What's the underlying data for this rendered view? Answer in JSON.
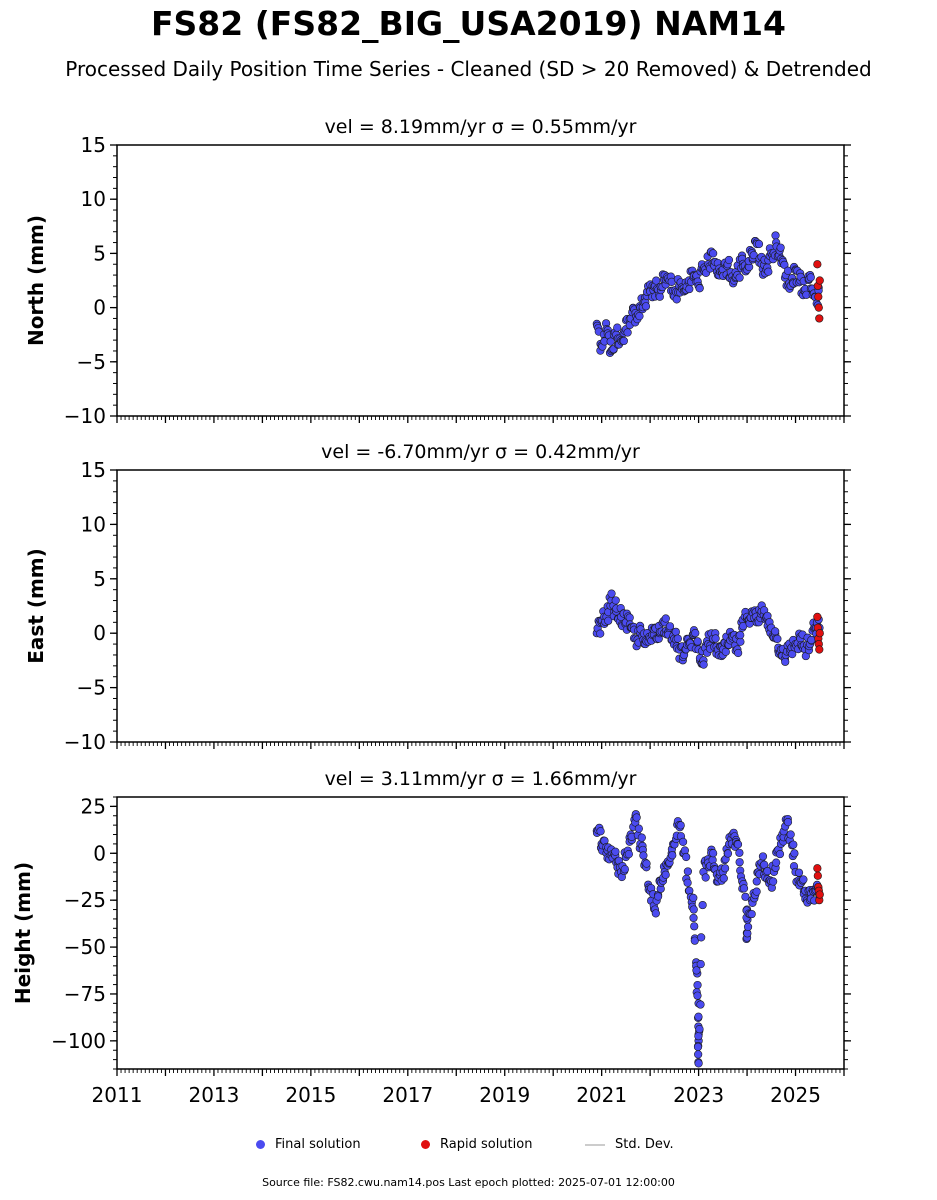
{
  "header": {
    "title": "FS82 (FS82_BIG_USA2019) NAM14",
    "subtitle": "Processed Daily Position Time Series - Cleaned (SD > 20 Removed) & Detrended"
  },
  "legend": {
    "final_label": "Final solution",
    "rapid_label": "Rapid solution",
    "std_label": "Std. Dev."
  },
  "footer": {
    "text": "Source file: FS82.cwu.nam14.pos  Last epoch plotted: 2025-07-01 12:00:00"
  },
  "colors": {
    "final": "#4b4bf0",
    "rapid": "#e01010",
    "std": "#9a9a9a",
    "marker_edge": "#1a1a1a"
  },
  "chart_data": [
    {
      "type": "scatter",
      "panel_title": "vel = 8.19mm/yr   σ = 0.55mm/yr",
      "ylabel": "North (mm)",
      "xlim": [
        2011.0,
        2026.0
      ],
      "ylim": [
        -10,
        15
      ],
      "yticks": [
        -10,
        -5,
        0,
        5,
        10,
        15
      ],
      "ytick_labels": [
        "−10",
        "−5",
        "0",
        "5",
        "10",
        "15"
      ],
      "xticks": [
        2011,
        2013,
        2015,
        2017,
        2019,
        2021,
        2023,
        2025
      ],
      "show_xtick_labels": false,
      "final_series": {
        "name": "Final solution",
        "x": [
          2020.9,
          2021.0,
          2021.1,
          2021.2,
          2021.3,
          2021.4,
          2021.5,
          2021.6,
          2021.7,
          2021.8,
          2021.9,
          2022.0,
          2022.1,
          2022.2,
          2022.3,
          2022.4,
          2022.5,
          2022.6,
          2022.7,
          2022.8,
          2022.9,
          2023.0,
          2023.1,
          2023.2,
          2023.3,
          2023.4,
          2023.5,
          2023.6,
          2023.7,
          2023.8,
          2023.9,
          2024.0,
          2024.1,
          2024.2,
          2024.3,
          2024.4,
          2024.5,
          2024.6,
          2024.7,
          2024.8,
          2024.9,
          2025.0,
          2025.1,
          2025.2,
          2025.3,
          2025.4
        ],
        "y": [
          -1.5,
          -3.5,
          -2.0,
          -4.0,
          -2.5,
          -3.0,
          -2.0,
          -1.0,
          -0.5,
          0.0,
          0.5,
          1.5,
          2.0,
          1.0,
          3.0,
          2.5,
          1.0,
          2.0,
          1.5,
          2.5,
          3.0,
          2.0,
          3.5,
          4.0,
          5.0,
          3.0,
          3.5,
          4.0,
          2.5,
          3.0,
          4.5,
          3.5,
          5.0,
          6.0,
          4.0,
          3.5,
          5.0,
          6.0,
          4.5,
          3.0,
          2.0,
          3.5,
          2.5,
          1.5,
          3.0,
          1.0
        ]
      },
      "rapid_series": {
        "name": "Rapid solution",
        "x": [
          2025.45,
          2025.46,
          2025.47,
          2025.48,
          2025.49,
          2025.5
        ],
        "y": [
          4.0,
          2.0,
          1.0,
          0.0,
          -1.0,
          2.5
        ]
      }
    },
    {
      "type": "scatter",
      "panel_title": "vel = -6.70mm/yr   σ = 0.42mm/yr",
      "ylabel": "East (mm)",
      "xlim": [
        2011.0,
        2026.0
      ],
      "ylim": [
        -10,
        15
      ],
      "yticks": [
        -10,
        -5,
        0,
        5,
        10,
        15
      ],
      "ytick_labels": [
        "−10",
        "−5",
        "0",
        "5",
        "10",
        "15"
      ],
      "xticks": [
        2011,
        2013,
        2015,
        2017,
        2019,
        2021,
        2023,
        2025
      ],
      "show_xtick_labels": false,
      "final_series": {
        "name": "Final solution",
        "x": [
          2020.9,
          2021.0,
          2021.1,
          2021.2,
          2021.3,
          2021.4,
          2021.5,
          2021.6,
          2021.7,
          2021.8,
          2021.9,
          2022.0,
          2022.1,
          2022.2,
          2022.3,
          2022.4,
          2022.5,
          2022.6,
          2022.7,
          2022.8,
          2022.9,
          2023.0,
          2023.1,
          2023.2,
          2023.3,
          2023.4,
          2023.5,
          2023.6,
          2023.7,
          2023.8,
          2023.9,
          2024.0,
          2024.1,
          2024.2,
          2024.3,
          2024.4,
          2024.5,
          2024.6,
          2024.7,
          2024.8,
          2024.9,
          2025.0,
          2025.1,
          2025.2,
          2025.3,
          2025.4
        ],
        "y": [
          0.0,
          1.0,
          1.5,
          3.0,
          2.0,
          1.5,
          1.0,
          0.5,
          -0.5,
          0.0,
          -1.0,
          -0.5,
          0.5,
          0.0,
          1.0,
          0.5,
          -0.5,
          -1.5,
          -2.0,
          -1.0,
          0.0,
          -1.5,
          -2.5,
          -1.0,
          -0.5,
          -1.5,
          -2.0,
          -1.0,
          -0.5,
          -1.5,
          0.5,
          1.5,
          2.0,
          1.0,
          2.0,
          1.5,
          0.5,
          -0.5,
          -1.5,
          -2.0,
          -1.5,
          -1.0,
          -0.5,
          -1.5,
          -1.0,
          0.5
        ]
      },
      "rapid_series": {
        "name": "Rapid solution",
        "x": [
          2025.45,
          2025.46,
          2025.47,
          2025.48,
          2025.49,
          2025.5
        ],
        "y": [
          1.5,
          0.5,
          -0.5,
          -1.0,
          -1.5,
          0.0
        ]
      }
    },
    {
      "type": "scatter",
      "panel_title": "vel = 3.11mm/yr   σ = 1.66mm/yr",
      "ylabel": "Height (mm)",
      "xlim": [
        2011.0,
        2026.0
      ],
      "ylim": [
        -115,
        30
      ],
      "yticks": [
        -100,
        -75,
        -50,
        -25,
        0,
        25
      ],
      "ytick_labels": [
        "−100",
        "−75",
        "−50",
        "−25",
        "0",
        "25"
      ],
      "xticks": [
        2011,
        2013,
        2015,
        2017,
        2019,
        2021,
        2023,
        2025
      ],
      "xtick_labels": [
        "2011",
        "2013",
        "2015",
        "2017",
        "2019",
        "2021",
        "2023",
        "2025"
      ],
      "show_xtick_labels": true,
      "final_series": {
        "name": "Final solution",
        "x": [
          2020.9,
          2021.0,
          2021.1,
          2021.2,
          2021.3,
          2021.4,
          2021.5,
          2021.6,
          2021.7,
          2021.8,
          2021.9,
          2022.0,
          2022.1,
          2022.2,
          2022.3,
          2022.4,
          2022.5,
          2022.6,
          2022.7,
          2022.8,
          2022.9,
          2022.95,
          2023.0,
          2023.0,
          2023.0,
          2023.1,
          2023.2,
          2023.3,
          2023.4,
          2023.5,
          2023.6,
          2023.7,
          2023.8,
          2023.9,
          2024.0,
          2024.0,
          2024.1,
          2024.2,
          2024.3,
          2024.4,
          2024.5,
          2024.6,
          2024.7,
          2024.8,
          2024.9,
          2025.0,
          2025.1,
          2025.2,
          2025.3,
          2025.4
        ],
        "y": [
          12.0,
          5.0,
          0.0,
          2.0,
          -5.0,
          -10.0,
          -2.0,
          10.0,
          20.0,
          5.0,
          -5.0,
          -20.0,
          -30.0,
          -15.0,
          -10.0,
          -5.0,
          5.0,
          15.0,
          0.0,
          -20.0,
          -30.0,
          -60.0,
          -80.0,
          -100.0,
          -112.0,
          -10.0,
          -5.0,
          0.0,
          -15.0,
          -10.0,
          0.0,
          10.0,
          5.0,
          -15.0,
          -30.0,
          -45.0,
          -25.0,
          -15.0,
          -5.0,
          -10.0,
          -15.0,
          -5.0,
          5.0,
          18.0,
          10.0,
          -10.0,
          -15.0,
          -20.0,
          -25.0,
          -20.0
        ]
      },
      "rapid_series": {
        "name": "Rapid solution",
        "x": [
          2025.45,
          2025.46,
          2025.47,
          2025.48,
          2025.49,
          2025.5
        ],
        "y": [
          -8.0,
          -12.0,
          -18.0,
          -20.0,
          -25.0,
          -22.0
        ]
      }
    }
  ]
}
